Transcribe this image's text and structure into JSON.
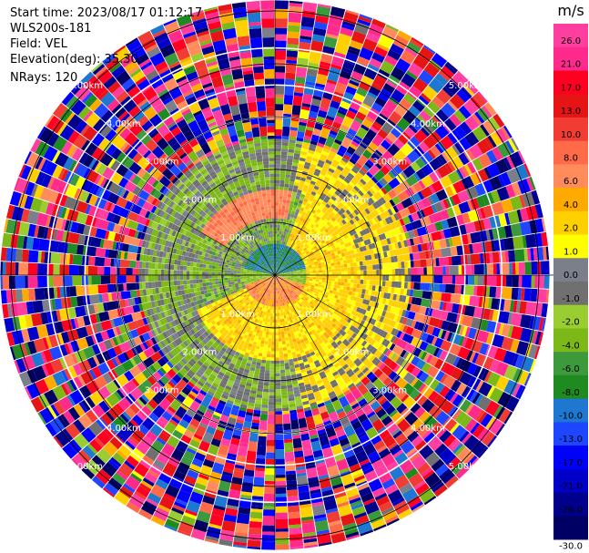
{
  "header": {
    "start_time": "Start time: 2023/08/17 01:12:17",
    "instrument": "WLS200s-181",
    "field": "Field: VEL",
    "elevation": "Elevation(deg): 35.30",
    "nrays": "NRays: 120"
  },
  "chart_data": {
    "type": "heatmap",
    "projection": "polar (PPI)",
    "field": "VEL",
    "units": "m/s",
    "n_rays": 120,
    "range_rings": [
      {
        "label": "1.00km",
        "km": 1
      },
      {
        "label": "2.00km",
        "km": 2
      },
      {
        "label": "3.00km",
        "km": 3
      },
      {
        "label": "4.00km",
        "km": 4
      },
      {
        "label": "5.00km",
        "km": 5
      }
    ],
    "colorbar": {
      "title": "m/s",
      "range": [
        -30,
        30
      ],
      "ticks": [
        "26.0",
        "21.0",
        "17.0",
        "13.0",
        "10.0",
        "8.0",
        "6.0",
        "4.0",
        "2.0",
        "1.0",
        "0.0",
        "-1.0",
        "-2.0",
        "-4.0",
        "-6.0",
        "-8.0",
        "-10.0",
        "-13.0",
        "-17.0",
        "-21.0",
        "-26.0",
        "-30.0"
      ],
      "bins": [
        {
          "lo": 26,
          "hi": 30,
          "color": "#ff3ea0"
        },
        {
          "lo": 21,
          "hi": 26,
          "color": "#ff2a8c"
        },
        {
          "lo": 17,
          "hi": 21,
          "color": "#ff0022"
        },
        {
          "lo": 13,
          "hi": 17,
          "color": "#e61414"
        },
        {
          "lo": 10,
          "hi": 13,
          "color": "#f03c32"
        },
        {
          "lo": 8,
          "hi": 10,
          "color": "#ff6a48"
        },
        {
          "lo": 6,
          "hi": 8,
          "color": "#ff8c5a"
        },
        {
          "lo": 4,
          "hi": 6,
          "color": "#ffaa00"
        },
        {
          "lo": 2,
          "hi": 4,
          "color": "#ffd000"
        },
        {
          "lo": 1,
          "hi": 2,
          "color": "#ffff00"
        },
        {
          "lo": 0,
          "hi": 1,
          "color": "#7a7f8a"
        },
        {
          "lo": -1,
          "hi": 0,
          "color": "#707070"
        },
        {
          "lo": -2,
          "hi": -1,
          "color": "#9acd32"
        },
        {
          "lo": -4,
          "hi": -2,
          "color": "#7cb818"
        },
        {
          "lo": -6,
          "hi": -4,
          "color": "#3c9a3c"
        },
        {
          "lo": -8,
          "hi": -6,
          "color": "#1f8a1f"
        },
        {
          "lo": -10,
          "hi": -8,
          "color": "#1e78d2"
        },
        {
          "lo": -13,
          "hi": -10,
          "color": "#1e46ff"
        },
        {
          "lo": -17,
          "hi": -13,
          "color": "#0000ff"
        },
        {
          "lo": -21,
          "hi": -17,
          "color": "#0000c8"
        },
        {
          "lo": -26,
          "hi": -21,
          "color": "#00008c"
        },
        {
          "lo": -30,
          "hi": -26,
          "color": "#000064"
        }
      ]
    },
    "regions": [
      {
        "range_km": [
          0,
          0.6
        ],
        "description": "mixed green/blue, negative -4 to -10 m/s north, orange/red positive south"
      },
      {
        "range_km": [
          0.6,
          1.6
        ],
        "description": "north/west green (-2 to -4), east/south yellow (+1 to +4), gray near 0 elsewhere"
      },
      {
        "range_km": [
          1.6,
          2.6
        ],
        "description": "mostly gray/green west, yellow east, pale noise"
      },
      {
        "range_km": [
          2.6,
          5.3
        ],
        "description": "noise: random colors across full range"
      }
    ],
    "grid": true
  }
}
